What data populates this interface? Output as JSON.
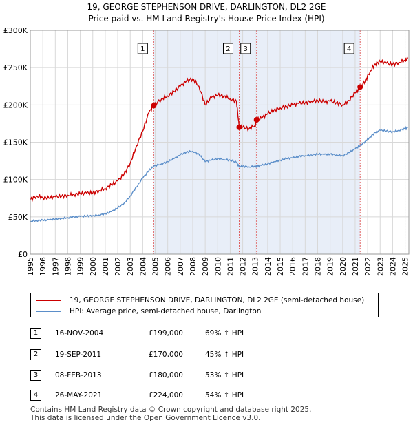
{
  "header": {
    "title_line1": "19, GEORGE STEPHENSON DRIVE, DARLINGTON, DL2 2GE",
    "title_line2": "Price paid vs. HM Land Registry's House Price Index (HPI)"
  },
  "colors": {
    "property": "#cc0000",
    "hpi": "#5b8ec9",
    "shade": "#e8eef8",
    "grid": "#d8d8d8",
    "marker_line": "#e06060"
  },
  "chart_data": {
    "type": "line",
    "xlabel": "",
    "ylabel": "",
    "xlim": [
      1995,
      2025.3
    ],
    "ylim": [
      0,
      300000
    ],
    "y_ticks": [
      {
        "value": 0,
        "label": "£0"
      },
      {
        "value": 50000,
        "label": "£50K"
      },
      {
        "value": 100000,
        "label": "£100K"
      },
      {
        "value": 150000,
        "label": "£150K"
      },
      {
        "value": 200000,
        "label": "£200K"
      },
      {
        "value": 250000,
        "label": "£250K"
      },
      {
        "value": 300000,
        "label": "£300K"
      }
    ],
    "x_ticks": [
      "1995",
      "1996",
      "1997",
      "1998",
      "1999",
      "2000",
      "2001",
      "2002",
      "2003",
      "2004",
      "2005",
      "2006",
      "2007",
      "2008",
      "2009",
      "2010",
      "2011",
      "2012",
      "2013",
      "2014",
      "2015",
      "2016",
      "2017",
      "2018",
      "2019",
      "2020",
      "2021",
      "2022",
      "2023",
      "2024",
      "2025"
    ],
    "grid": true,
    "shaded_regions": [
      [
        2004.88,
        2021.4
      ]
    ],
    "series": [
      {
        "name": "19, GEORGE STEPHENSON DRIVE, DARLINGTON, DL2 2GE (semi-detached house)",
        "color": "#cc0000",
        "points": [
          [
            1995.0,
            73000
          ],
          [
            1995.5,
            78000
          ],
          [
            1996.0,
            76000
          ],
          [
            1996.5,
            75000
          ],
          [
            1997.0,
            77000
          ],
          [
            1997.5,
            77500
          ],
          [
            1998.0,
            79000
          ],
          [
            1998.5,
            80000
          ],
          [
            1999.0,
            81000
          ],
          [
            1999.5,
            82000
          ],
          [
            2000.0,
            82000
          ],
          [
            2000.5,
            85000
          ],
          [
            2001.0,
            88000
          ],
          [
            2001.5,
            93000
          ],
          [
            2002.0,
            98000
          ],
          [
            2002.5,
            107000
          ],
          [
            2003.0,
            122000
          ],
          [
            2003.5,
            145000
          ],
          [
            2004.0,
            165000
          ],
          [
            2004.5,
            190000
          ],
          [
            2004.88,
            199000
          ],
          [
            2005.5,
            208000
          ],
          [
            2006.0,
            212000
          ],
          [
            2006.5,
            218000
          ],
          [
            2007.0,
            225000
          ],
          [
            2007.5,
            232000
          ],
          [
            2008.0,
            235000
          ],
          [
            2008.5,
            225000
          ],
          [
            2009.0,
            200000
          ],
          [
            2009.5,
            210000
          ],
          [
            2010.0,
            213000
          ],
          [
            2010.5,
            212000
          ],
          [
            2011.0,
            208000
          ],
          [
            2011.5,
            205000
          ],
          [
            2011.72,
            170000
          ],
          [
            2012.0,
            170000
          ],
          [
            2012.5,
            168000
          ],
          [
            2013.0,
            173000
          ],
          [
            2013.11,
            180000
          ],
          [
            2013.5,
            182000
          ],
          [
            2014.0,
            188000
          ],
          [
            2014.5,
            193000
          ],
          [
            2015.0,
            196000
          ],
          [
            2015.5,
            198000
          ],
          [
            2016.0,
            200000
          ],
          [
            2016.5,
            202000
          ],
          [
            2017.0,
            203000
          ],
          [
            2017.5,
            205000
          ],
          [
            2018.0,
            206000
          ],
          [
            2018.5,
            204000
          ],
          [
            2019.0,
            205000
          ],
          [
            2019.5,
            203000
          ],
          [
            2020.0,
            200000
          ],
          [
            2020.5,
            206000
          ],
          [
            2021.0,
            216000
          ],
          [
            2021.4,
            224000
          ],
          [
            2021.8,
            232000
          ],
          [
            2022.2,
            245000
          ],
          [
            2022.6,
            255000
          ],
          [
            2023.0,
            258000
          ],
          [
            2023.5,
            256000
          ],
          [
            2024.0,
            254000
          ],
          [
            2024.5,
            257000
          ],
          [
            2025.0,
            260000
          ],
          [
            2025.2,
            262000
          ]
        ]
      },
      {
        "name": "HPI: Average price, semi-detached house, Darlington",
        "color": "#5b8ec9",
        "points": [
          [
            1995.0,
            44000
          ],
          [
            1995.5,
            45000
          ],
          [
            1996.0,
            45500
          ],
          [
            1996.5,
            46000
          ],
          [
            1997.0,
            47000
          ],
          [
            1997.5,
            48000
          ],
          [
            1998.0,
            49000
          ],
          [
            1998.5,
            50000
          ],
          [
            1999.0,
            50500
          ],
          [
            1999.5,
            51000
          ],
          [
            2000.0,
            51500
          ],
          [
            2000.5,
            52500
          ],
          [
            2001.0,
            54000
          ],
          [
            2001.5,
            57000
          ],
          [
            2002.0,
            62000
          ],
          [
            2002.5,
            68000
          ],
          [
            2003.0,
            78000
          ],
          [
            2003.5,
            90000
          ],
          [
            2004.0,
            102000
          ],
          [
            2004.5,
            112000
          ],
          [
            2004.88,
            118000
          ],
          [
            2005.5,
            121000
          ],
          [
            2006.0,
            124000
          ],
          [
            2006.5,
            128000
          ],
          [
            2007.0,
            133000
          ],
          [
            2007.5,
            137000
          ],
          [
            2008.0,
            138000
          ],
          [
            2008.5,
            134000
          ],
          [
            2009.0,
            124000
          ],
          [
            2009.5,
            126000
          ],
          [
            2010.0,
            128000
          ],
          [
            2010.5,
            127000
          ],
          [
            2011.0,
            126000
          ],
          [
            2011.5,
            123000
          ],
          [
            2011.72,
            117000
          ],
          [
            2012.0,
            118000
          ],
          [
            2012.5,
            117000
          ],
          [
            2013.0,
            117500
          ],
          [
            2013.11,
            117600
          ],
          [
            2013.5,
            119000
          ],
          [
            2014.0,
            121000
          ],
          [
            2014.5,
            124000
          ],
          [
            2015.0,
            126000
          ],
          [
            2015.5,
            128000
          ],
          [
            2016.0,
            129000
          ],
          [
            2016.5,
            131000
          ],
          [
            2017.0,
            132000
          ],
          [
            2017.5,
            133000
          ],
          [
            2018.0,
            134000
          ],
          [
            2018.5,
            133500
          ],
          [
            2019.0,
            134000
          ],
          [
            2019.5,
            133000
          ],
          [
            2020.0,
            132000
          ],
          [
            2020.5,
            136000
          ],
          [
            2021.0,
            141000
          ],
          [
            2021.4,
            145500
          ],
          [
            2021.8,
            151000
          ],
          [
            2022.2,
            157000
          ],
          [
            2022.6,
            163000
          ],
          [
            2023.0,
            166000
          ],
          [
            2023.5,
            165000
          ],
          [
            2024.0,
            164000
          ],
          [
            2024.5,
            166000
          ],
          [
            2025.0,
            168000
          ],
          [
            2025.2,
            169000
          ]
        ]
      }
    ],
    "sale_markers": [
      {
        "label": "1",
        "x": 2004.88,
        "y": 199000
      },
      {
        "label": "2",
        "x": 2011.72,
        "y": 170000
      },
      {
        "label": "3",
        "x": 2013.11,
        "y": 180000
      },
      {
        "label": "4",
        "x": 2021.4,
        "y": 224000
      }
    ],
    "end_marker_x": 2025.0
  },
  "legend": {
    "property_label": "19, GEORGE STEPHENSON DRIVE, DARLINGTON, DL2 2GE (semi-detached house)",
    "hpi_label": "HPI: Average price, semi-detached house, Darlington"
  },
  "sales": [
    {
      "num": "1",
      "date": "16-NOV-2004",
      "price": "£199,000",
      "hpi": "69% ↑ HPI"
    },
    {
      "num": "2",
      "date": "19-SEP-2011",
      "price": "£170,000",
      "hpi": "45% ↑ HPI"
    },
    {
      "num": "3",
      "date": "08-FEB-2013",
      "price": "£180,000",
      "hpi": "53% ↑ HPI"
    },
    {
      "num": "4",
      "date": "26-MAY-2021",
      "price": "£224,000",
      "hpi": "54% ↑ HPI"
    }
  ],
  "footer": {
    "line1": "Contains HM Land Registry data © Crown copyright and database right 2025.",
    "line2": "This data is licensed under the Open Government Licence v3.0."
  }
}
